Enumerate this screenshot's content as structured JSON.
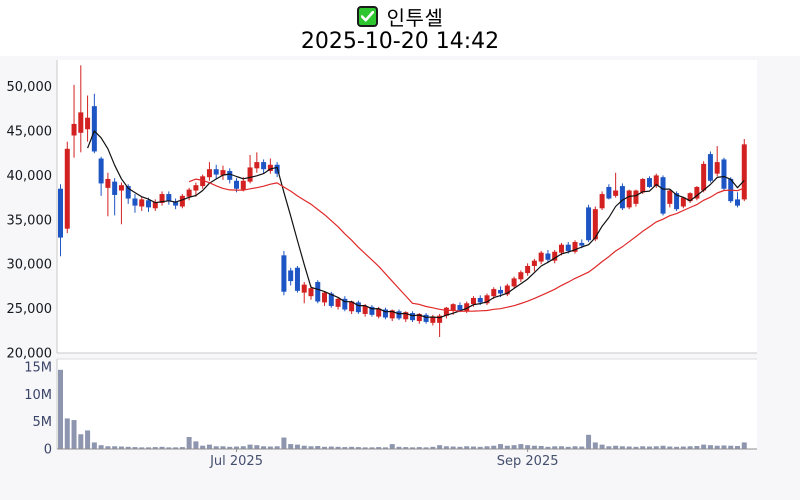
{
  "title": {
    "icon": "checked-checkbox",
    "text": "인투셀",
    "subtitle": "2025-10-20 14:42"
  },
  "colors": {
    "up_candle": "#d32020",
    "down_candle": "#1d55c4",
    "ma_short": "#111111",
    "ma_long": "#e02a2a",
    "volume_bar": "#8d95af",
    "checkbox_green": "#2ec62e",
    "checkbox_check": "#ffffff",
    "price_label": "#14181f",
    "volume_label": "#3a4468",
    "date_label": "#454f6e",
    "panel_bg": "#ffffff",
    "page_bg": "#f7f7f9",
    "axis_line": "#c8c8c8",
    "volume_axis_line": "#8f8f8f",
    "volume_top_line": "#dcdcdc"
  },
  "chart_data": {
    "type": "candlestick",
    "title": "인투셀",
    "timestamp": "2025-10-20 14:42",
    "legend_position": "none",
    "grid": false,
    "price_axis": {
      "min": 20000,
      "max": 53000,
      "ticks": [
        {
          "label": "50,000",
          "value": 50000
        },
        {
          "label": "45,000",
          "value": 45000
        },
        {
          "label": "40,000",
          "value": 40000
        },
        {
          "label": "35,000",
          "value": 35000
        },
        {
          "label": "30,000",
          "value": 30000
        },
        {
          "label": "25,000",
          "value": 25000
        },
        {
          "label": "20,000",
          "value": 20000
        }
      ]
    },
    "volume_axis": {
      "min": 0,
      "max_millions": 15.75,
      "ticks": [
        {
          "label": "15M",
          "value_millions": 15
        },
        {
          "label": "10M",
          "value_millions": 10
        },
        {
          "label": "5M",
          "value_millions": 5
        },
        {
          "label": "0",
          "value_millions": 0
        }
      ]
    },
    "x_axis": {
      "ticks": [
        {
          "label": "Jul 2025",
          "index": 26
        },
        {
          "label": "Sep 2025",
          "index": 69
        }
      ]
    },
    "moving_averages": [
      {
        "name": "MA-short",
        "period": 5,
        "color": "#111111"
      },
      {
        "name": "MA-long",
        "period": 20,
        "color": "#e02a2a"
      }
    ],
    "columns": [
      "open",
      "high",
      "low",
      "close",
      "volume_millions"
    ],
    "candles": [
      [
        38500,
        39000,
        30900,
        33000,
        14.5
      ],
      [
        34000,
        43800,
        33500,
        43000,
        5.6
      ],
      [
        44500,
        50200,
        42000,
        45800,
        5.3
      ],
      [
        44800,
        52400,
        42600,
        47100,
        2.7
      ],
      [
        45200,
        49000,
        43800,
        46500,
        3.4
      ],
      [
        47800,
        49200,
        42500,
        42700,
        1.2
      ],
      [
        41900,
        42100,
        37700,
        39100,
        0.7
      ],
      [
        38600,
        40300,
        35400,
        39600,
        0.5
      ],
      [
        39300,
        39700,
        35500,
        37800,
        0.5
      ],
      [
        38300,
        39200,
        34500,
        38900,
        0.45
      ],
      [
        38800,
        39000,
        36800,
        37400,
        0.4
      ],
      [
        37400,
        37900,
        35800,
        36600,
        0.35
      ],
      [
        36500,
        37600,
        36000,
        37300,
        0.3
      ],
      [
        37200,
        37500,
        35900,
        36400,
        0.3
      ],
      [
        36300,
        37300,
        36000,
        37000,
        0.35
      ],
      [
        36900,
        38200,
        36600,
        37900,
        0.4
      ],
      [
        37900,
        38200,
        36700,
        37100,
        0.3
      ],
      [
        37000,
        37400,
        36200,
        36600,
        0.3
      ],
      [
        36500,
        37900,
        36300,
        37700,
        0.35
      ],
      [
        37600,
        38600,
        37200,
        38400,
        2.2
      ],
      [
        38300,
        39200,
        37600,
        38900,
        1.4
      ],
      [
        38800,
        40100,
        38500,
        39900,
        0.6
      ],
      [
        39800,
        41500,
        39400,
        40700,
        0.8
      ],
      [
        40700,
        41200,
        39600,
        40100,
        0.5
      ],
      [
        40000,
        41100,
        39500,
        40600,
        0.5
      ],
      [
        40500,
        40800,
        39100,
        39500,
        0.4
      ],
      [
        39400,
        39700,
        38100,
        38500,
        0.45
      ],
      [
        38400,
        39800,
        38200,
        39400,
        0.5
      ],
      [
        39300,
        42300,
        39100,
        40900,
        0.8
      ],
      [
        40800,
        42600,
        40300,
        41500,
        0.7
      ],
      [
        41500,
        41800,
        40200,
        40700,
        0.5
      ],
      [
        40500,
        41900,
        40200,
        41200,
        0.45
      ],
      [
        41200,
        41500,
        39800,
        40200,
        0.5
      ],
      [
        31000,
        31500,
        26500,
        26900,
        2.1
      ],
      [
        29300,
        29600,
        27600,
        28100,
        0.9
      ],
      [
        29600,
        29800,
        26800,
        27000,
        0.8
      ],
      [
        26800,
        28000,
        25600,
        27700,
        0.6
      ],
      [
        26400,
        27600,
        26000,
        27300,
        0.5
      ],
      [
        28000,
        28200,
        25600,
        25800,
        0.55
      ],
      [
        25700,
        26900,
        25300,
        26800,
        0.4
      ],
      [
        26700,
        26900,
        25100,
        25300,
        0.45
      ],
      [
        25200,
        26300,
        24900,
        26100,
        0.4
      ],
      [
        26100,
        26400,
        24700,
        24900,
        0.35
      ],
      [
        24700,
        25900,
        24400,
        25800,
        0.4
      ],
      [
        25700,
        25900,
        24400,
        24600,
        0.35
      ],
      [
        24400,
        25500,
        24100,
        25300,
        0.3
      ],
      [
        25200,
        25400,
        24100,
        24300,
        0.3
      ],
      [
        24100,
        25200,
        23900,
        25000,
        0.35
      ],
      [
        24900,
        25100,
        23800,
        24000,
        0.3
      ],
      [
        23900,
        24900,
        23600,
        24800,
        0.9
      ],
      [
        24700,
        24900,
        23700,
        23900,
        0.4
      ],
      [
        23800,
        24700,
        23500,
        24600,
        0.35
      ],
      [
        24500,
        24700,
        23500,
        23700,
        0.3
      ],
      [
        23600,
        24500,
        23300,
        24400,
        0.35
      ],
      [
        24300,
        24500,
        23300,
        23500,
        0.3
      ],
      [
        23400,
        24300,
        23100,
        24100,
        0.4
      ],
      [
        23400,
        24400,
        21800,
        24200,
        0.7
      ],
      [
        24200,
        25200,
        23900,
        25100,
        0.5
      ],
      [
        24800,
        25600,
        24300,
        25500,
        0.45
      ],
      [
        25400,
        25700,
        24600,
        24800,
        0.4
      ],
      [
        24700,
        25800,
        24500,
        25600,
        0.5
      ],
      [
        25500,
        26400,
        25200,
        26200,
        0.45
      ],
      [
        26200,
        26500,
        25400,
        25700,
        0.4
      ],
      [
        25600,
        26700,
        25400,
        26500,
        0.5
      ],
      [
        26400,
        27400,
        26100,
        27200,
        0.6
      ],
      [
        27100,
        27500,
        26300,
        26700,
        0.9
      ],
      [
        26600,
        27800,
        26400,
        27600,
        0.6
      ],
      [
        27500,
        28600,
        27300,
        28400,
        0.7
      ],
      [
        28300,
        29300,
        28000,
        29100,
        0.9
      ],
      [
        29000,
        30100,
        28700,
        29800,
        0.7
      ],
      [
        29800,
        30600,
        29200,
        30400,
        0.6
      ],
      [
        30300,
        31500,
        30000,
        31300,
        0.55
      ],
      [
        31200,
        31600,
        30200,
        30500,
        0.4
      ],
      [
        30400,
        31600,
        30100,
        31400,
        0.5
      ],
      [
        31300,
        32400,
        31000,
        32200,
        0.5
      ],
      [
        32200,
        32500,
        31200,
        31500,
        0.4
      ],
      [
        31400,
        32700,
        31200,
        32500,
        0.5
      ],
      [
        32400,
        32800,
        31800,
        32100,
        0.45
      ],
      [
        36400,
        36700,
        32500,
        32700,
        2.6
      ],
      [
        32800,
        36500,
        32600,
        36200,
        1.2
      ],
      [
        36300,
        38200,
        36100,
        37900,
        0.8
      ],
      [
        38700,
        39000,
        37300,
        37400,
        0.5
      ],
      [
        37700,
        40300,
        37500,
        38300,
        0.6
      ],
      [
        38800,
        39100,
        36100,
        36300,
        0.5
      ],
      [
        36400,
        38400,
        36200,
        38300,
        0.45
      ],
      [
        36800,
        38400,
        36500,
        38300,
        0.4
      ],
      [
        38100,
        39700,
        37900,
        39600,
        0.5
      ],
      [
        39700,
        39900,
        38600,
        38700,
        0.45
      ],
      [
        38800,
        40200,
        38600,
        40000,
        0.5
      ],
      [
        39800,
        40000,
        35500,
        35700,
        0.6
      ],
      [
        36800,
        38400,
        36400,
        38300,
        0.45
      ],
      [
        38000,
        38200,
        36000,
        36200,
        0.4
      ],
      [
        36500,
        37600,
        36300,
        37500,
        0.45
      ],
      [
        37100,
        38100,
        36900,
        38000,
        0.5
      ],
      [
        37400,
        38800,
        37200,
        38700,
        0.55
      ],
      [
        38300,
        41600,
        38100,
        41300,
        0.8
      ],
      [
        42400,
        42700,
        39200,
        39400,
        0.7
      ],
      [
        40200,
        43300,
        39900,
        41500,
        0.6
      ],
      [
        41800,
        42000,
        38300,
        38500,
        0.65
      ],
      [
        39600,
        39800,
        36900,
        37100,
        0.6
      ],
      [
        37300,
        38100,
        36400,
        36600,
        0.55
      ],
      [
        37300,
        44100,
        37100,
        43500,
        1.2
      ]
    ]
  }
}
